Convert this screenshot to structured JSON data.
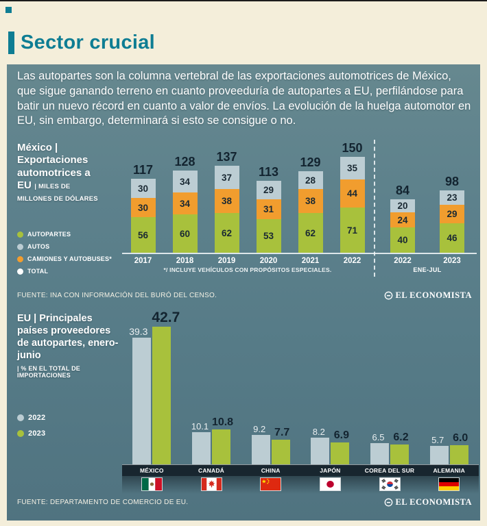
{
  "page": {
    "title": "Sector crucial",
    "intro": "Las autopartes son la columna vertebral de las exportaciones automotrices de México, que sigue ganando terreno en cuanto proveeduría de autopartes a EU, perfilándose para batir un nuevo récord en cuanto a valor de envíos. La evolución de la huelga automotor en EU, sin embargo, determinará si esto se consigue o no."
  },
  "colors": {
    "accent_teal": "#0e7d93",
    "cream_background": "#f4eeda",
    "panel_slate": "#567b87",
    "green_autopartes": "#a8c13c",
    "orange_camiones": "#f19d2e",
    "gray_autos": "#bccdd3",
    "navy_text": "#132430",
    "white": "#ffffff"
  },
  "chart1": {
    "heading_title": "México | Exportaciones automotrices a EU",
    "heading_unit": "| MILES DE MILLONES DE DÓLARES",
    "legend": [
      {
        "label": "AUTOPARTES",
        "color": "#a8c13c"
      },
      {
        "label": "AUTOS",
        "color": "#bccdd3"
      },
      {
        "label": "CAMIONES Y AUTOBUSES*",
        "color": "#f19d2e"
      },
      {
        "label": "TOTAL",
        "color": "#ffffff"
      }
    ],
    "footnote": "*/ INCLUYE VEHÍCULOS CON PROPÓSITOS ESPECIALES.",
    "period_label": "ENE-JUL",
    "source": "FUENTE: INA CON INFORMACIÓN DEL BURÓ DEL CENSO.",
    "brand": "EL ECONOMISTA"
  },
  "chart2": {
    "heading_title": "EU | Principales países proveedores de autopartes, enero-junio",
    "heading_unit": "| % EN EL TOTAL DE IMPORTACIONES",
    "legend": [
      {
        "label": "2022",
        "color": "#bccdd3"
      },
      {
        "label": "2023",
        "color": "#a8c13c"
      }
    ],
    "source": "FUENTE: DEPARTAMENTO DE COMERCIO DE EU.",
    "brand": "EL ECONOMISTA"
  },
  "chart_data": [
    {
      "type": "bar",
      "variant": "stacked",
      "title": "México | Exportaciones automotrices a EU",
      "ylabel": "MILES DE MILLONES DE DÓLARES",
      "categories": [
        "2017",
        "2018",
        "2019",
        "2020",
        "2021",
        "2022",
        "2022",
        "2023"
      ],
      "annual_columns": 6,
      "partial_period": "ENE-JUL",
      "stack_order": "bottom-to-top",
      "series": [
        {
          "name": "AUTOPARTES",
          "color": "#a8c13c",
          "values": [
            56,
            60,
            62,
            53,
            62,
            71,
            40,
            46
          ]
        },
        {
          "name": "CAMIONES Y AUTOBUSES*",
          "color": "#f19d2e",
          "values": [
            30,
            34,
            38,
            31,
            38,
            44,
            24,
            29
          ]
        },
        {
          "name": "AUTOS",
          "color": "#bccdd3",
          "values": [
            30,
            34,
            37,
            29,
            28,
            35,
            20,
            23
          ]
        }
      ],
      "totals": [
        117,
        128,
        137,
        113,
        129,
        150,
        84,
        98
      ],
      "ylim": [
        0,
        160
      ],
      "grid": false,
      "legend_position": "left"
    },
    {
      "type": "bar",
      "variant": "grouped",
      "title": "EU | Principales países proveedores de autopartes, enero-junio",
      "ylabel": "% EN EL TOTAL DE IMPORTACIONES",
      "categories": [
        "MÉXICO",
        "CANADÁ",
        "CHINA",
        "JAPÓN",
        "COREA DEL SUR",
        "ALEMANIA"
      ],
      "flags": [
        "mx",
        "ca",
        "cn",
        "jp",
        "kr",
        "de"
      ],
      "series": [
        {
          "name": "2022",
          "color": "#bccdd3",
          "values": [
            39.3,
            10.1,
            9.2,
            8.2,
            6.5,
            5.7
          ]
        },
        {
          "name": "2023",
          "color": "#a8c13c",
          "values": [
            42.7,
            10.8,
            7.7,
            6.9,
            6.2,
            6.0
          ]
        }
      ],
      "ylim": [
        0,
        45
      ],
      "grid": false,
      "legend_position": "left"
    }
  ]
}
